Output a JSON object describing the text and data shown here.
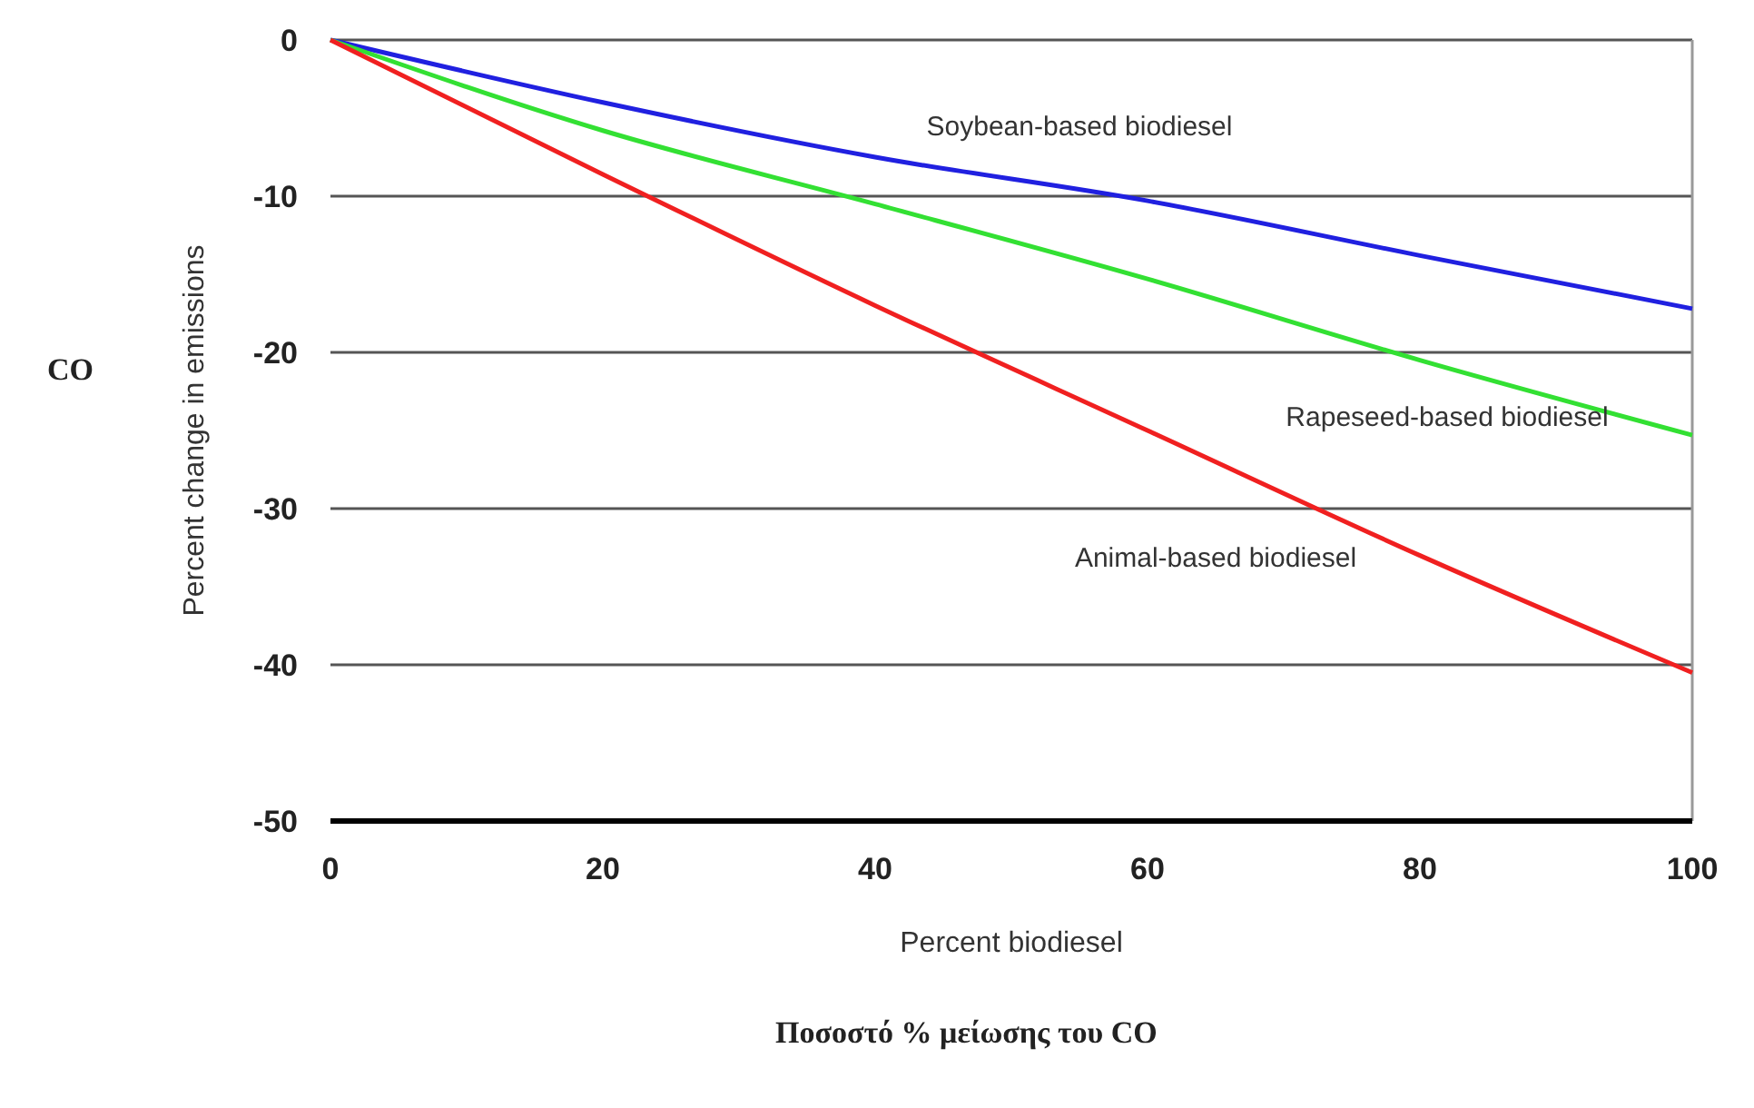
{
  "chart_data": {
    "type": "line",
    "title": "CO",
    "xlabel": "Percent biodiesel",
    "ylabel": "Percent change in emissions",
    "x": [
      0,
      20,
      40,
      60,
      80,
      100
    ],
    "series": [
      {
        "name": "Soybean-based biodiesel",
        "color": "#2020e0",
        "values": [
          0,
          -4.0,
          -7.5,
          -10.3,
          -13.8,
          -17.2
        ]
      },
      {
        "name": "Rapeseed-based biodiesel",
        "color": "#33e033",
        "values": [
          0,
          -5.8,
          -10.5,
          -15.3,
          -20.5,
          -25.3
        ]
      },
      {
        "name": "Animal-based biodiesel",
        "color": "#f02020",
        "values": [
          0,
          -8.6,
          -17,
          -25,
          -33,
          -40.5
        ]
      }
    ],
    "xlim": [
      0,
      100
    ],
    "xticks": [
      0,
      20,
      40,
      60,
      80,
      100
    ],
    "ylim": [
      -50,
      0
    ],
    "yticks": [
      -50,
      -40,
      -30,
      -20,
      -10,
      0
    ],
    "grid": "y",
    "marker": "none",
    "line_style": "solid",
    "annotations": [
      "Ποσοστό % μείωσης του CO"
    ]
  }
}
